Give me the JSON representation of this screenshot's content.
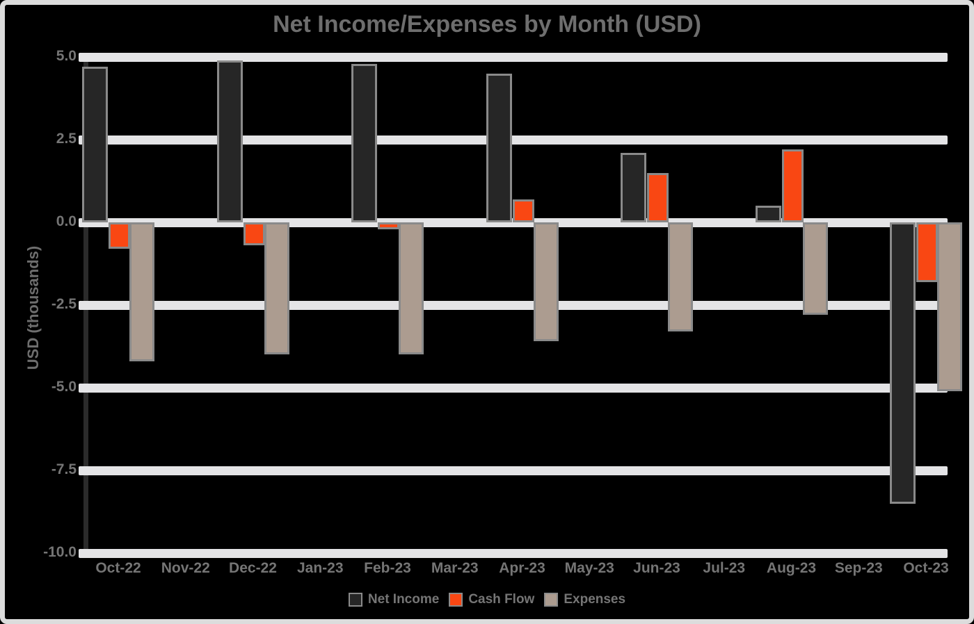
{
  "window": {
    "background_color": "#000000",
    "frame_color": "#DCDCDC"
  },
  "chart_data": {
    "type": "bar",
    "title": "Net Income/Expenses by Month (USD)",
    "xlabel": "",
    "ylabel": "USD (thousands)",
    "x_tick_labels": [
      "Oct-22",
      "Nov-22",
      "Dec-22",
      "Jan-23",
      "Feb-23",
      "Mar-23",
      "Apr-23",
      "May-23",
      "Jun-23",
      "Jul-23",
      "Aug-23",
      "Sep-23",
      "Oct-23"
    ],
    "categories": [
      "Oct-22",
      "Dec-22",
      "Feb-23",
      "Apr-23",
      "Jun-23",
      "Aug-23",
      "Oct-23"
    ],
    "series": [
      {
        "name": "Net Income",
        "color": "#262626",
        "values": [
          4.7,
          4.9,
          4.8,
          4.5,
          2.1,
          0.5,
          -8.5
        ]
      },
      {
        "name": "Cash Flow",
        "color": "#F94713",
        "values": [
          -0.8,
          -0.7,
          -0.2,
          0.7,
          1.5,
          2.2,
          -1.8
        ]
      },
      {
        "name": "Expenses",
        "color": "#AC9C90",
        "values": [
          -4.2,
          -4.0,
          -4.0,
          -3.6,
          -3.3,
          -2.8,
          -5.1
        ]
      }
    ],
    "y_ticks": [
      5.0,
      2.5,
      0.0,
      -2.5,
      -5.0,
      -7.5,
      -10.0
    ],
    "y_tick_labels": [
      "5.0",
      "2.5",
      "0.0",
      "-2.5",
      "-5.0",
      "-7.5",
      "-10.0"
    ],
    "ylim": [
      -10.0,
      5.0
    ],
    "grid": true,
    "gridline_color": "#E4E4E6",
    "axis_line_color": "#2B2B2B",
    "bar_edge_color": "#8A8A8A",
    "text_color": "#757575",
    "title_color": "#6E6E6E",
    "legend_position": "bottom"
  }
}
